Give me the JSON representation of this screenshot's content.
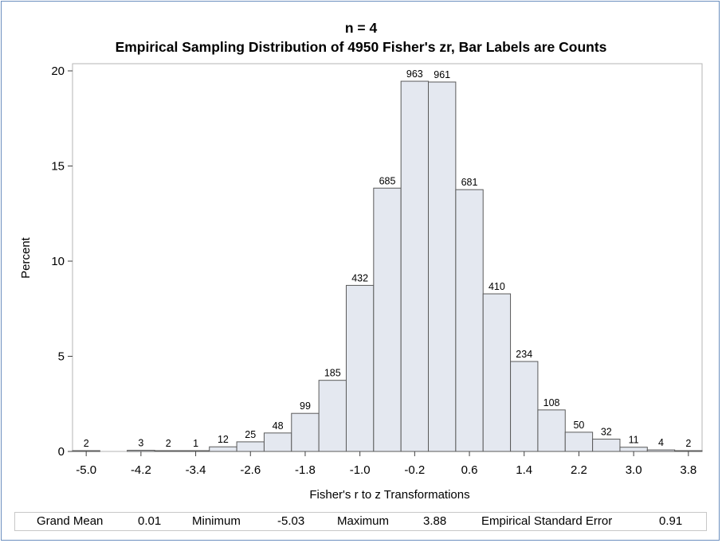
{
  "chart_data": {
    "type": "bar",
    "title": "n = 4",
    "subtitle": "Empirical Sampling Distribution of 4950 Fisher's zr, Bar Labels are Counts",
    "xlabel": "Fisher's r to z Transformations",
    "ylabel": "Percent",
    "total": 4950,
    "bin_width": 0.4,
    "bin_centers": [
      -5.0,
      -4.6,
      -4.2,
      -3.8,
      -3.4,
      -3.0,
      -2.6,
      -2.2,
      -1.8,
      -1.4,
      -1.0,
      -0.6,
      -0.2,
      0.2,
      0.6,
      1.0,
      1.4,
      1.8,
      2.2,
      2.6,
      3.0,
      3.4,
      3.8
    ],
    "counts": [
      2,
      0,
      3,
      2,
      1,
      12,
      25,
      48,
      99,
      185,
      432,
      685,
      963,
      961,
      681,
      410,
      234,
      108,
      50,
      32,
      11,
      4,
      2
    ],
    "bar_labels": [
      "2",
      "",
      "3",
      "2",
      "1",
      "12",
      "25",
      "48",
      "99",
      "185",
      "432",
      "685",
      "963",
      "961",
      "681",
      "410",
      "234",
      "108",
      "50",
      "32",
      "11",
      "4",
      "2"
    ],
    "xticks": [
      -5.0,
      -4.2,
      -3.4,
      -2.6,
      -1.8,
      -1.0,
      -0.2,
      0.6,
      1.4,
      2.2,
      3.0,
      3.8
    ],
    "xtick_labels": [
      "-5.0",
      "-4.2",
      "-3.4",
      "-2.6",
      "-1.8",
      "-1.0",
      "-0.2",
      "0.6",
      "1.4",
      "2.2",
      "3.0",
      "3.8"
    ],
    "yticks": [
      0,
      5,
      10,
      15,
      20
    ],
    "ytick_labels": [
      "0",
      "5",
      "10",
      "15",
      "20"
    ],
    "xlim": [
      -5.2,
      4.0
    ],
    "ylim": [
      0,
      20
    ],
    "grid": false,
    "bar_fill": "#e4e8f0",
    "bar_stroke": "#5a5a5a"
  },
  "stats_table": {
    "grand_mean_label": "Grand Mean",
    "grand_mean_value": "0.01",
    "minimum_label": "Minimum",
    "minimum_value": "-5.03",
    "maximum_label": "Maximum",
    "maximum_value": "3.88",
    "se_label": "Empirical Standard Error",
    "se_value": "0.91"
  }
}
